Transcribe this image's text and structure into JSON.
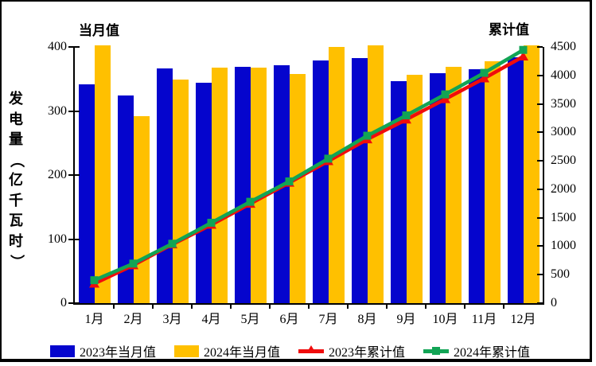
{
  "chart": {
    "left_caption": "当月值",
    "right_caption": "累计值",
    "y_axis_title": "发电量（亿千瓦时）",
    "colors": {
      "bar_2023": "#0505CD",
      "bar_2024": "#FFC000",
      "line_2023": "#F00C0C",
      "line_2024": "#12A455",
      "axis": "#000000",
      "background": "#FFFFFF"
    }
  },
  "chart_data": {
    "type": "bar+line combo, dual y-axes",
    "categories": [
      "1月",
      "2月",
      "3月",
      "4月",
      "5月",
      "6月",
      "7月",
      "8月",
      "9月",
      "10月",
      "11月",
      "12月"
    ],
    "series": [
      {
        "name": "2023年当月值",
        "type": "bar",
        "axis": "left",
        "color": "#0505CD",
        "values": [
          342,
          324,
          366,
          344,
          369,
          371,
          379,
          383,
          346,
          359,
          365,
          384
        ]
      },
      {
        "name": "2024年当月值",
        "type": "bar",
        "axis": "left",
        "color": "#FFC000",
        "values": [
          403,
          292,
          349,
          368,
          368,
          358,
          400,
          403,
          357,
          369,
          378,
          403
        ]
      },
      {
        "name": "2023年累计值",
        "type": "line",
        "axis": "right",
        "color": "#F00C0C",
        "marker": "triangle",
        "values": [
          342,
          666,
          1032,
          1376,
          1745,
          2116,
          2495,
          2878,
          3224,
          3583,
          3948,
          4332
        ]
      },
      {
        "name": "2024年累计值",
        "type": "line",
        "axis": "right",
        "color": "#12A455",
        "marker": "square",
        "values": [
          403,
          695,
          1044,
          1412,
          1780,
          2138,
          2538,
          2941,
          3298,
          3667,
          4045,
          4448
        ]
      }
    ],
    "left_axis": {
      "title": "发电量（亿千瓦时）",
      "caption": "当月值",
      "min": 0,
      "max": 400,
      "step": 100
    },
    "right_axis": {
      "caption": "累计值",
      "min": 0,
      "max": 4500,
      "step": 500
    },
    "legend_position": "bottom",
    "grid": false
  }
}
